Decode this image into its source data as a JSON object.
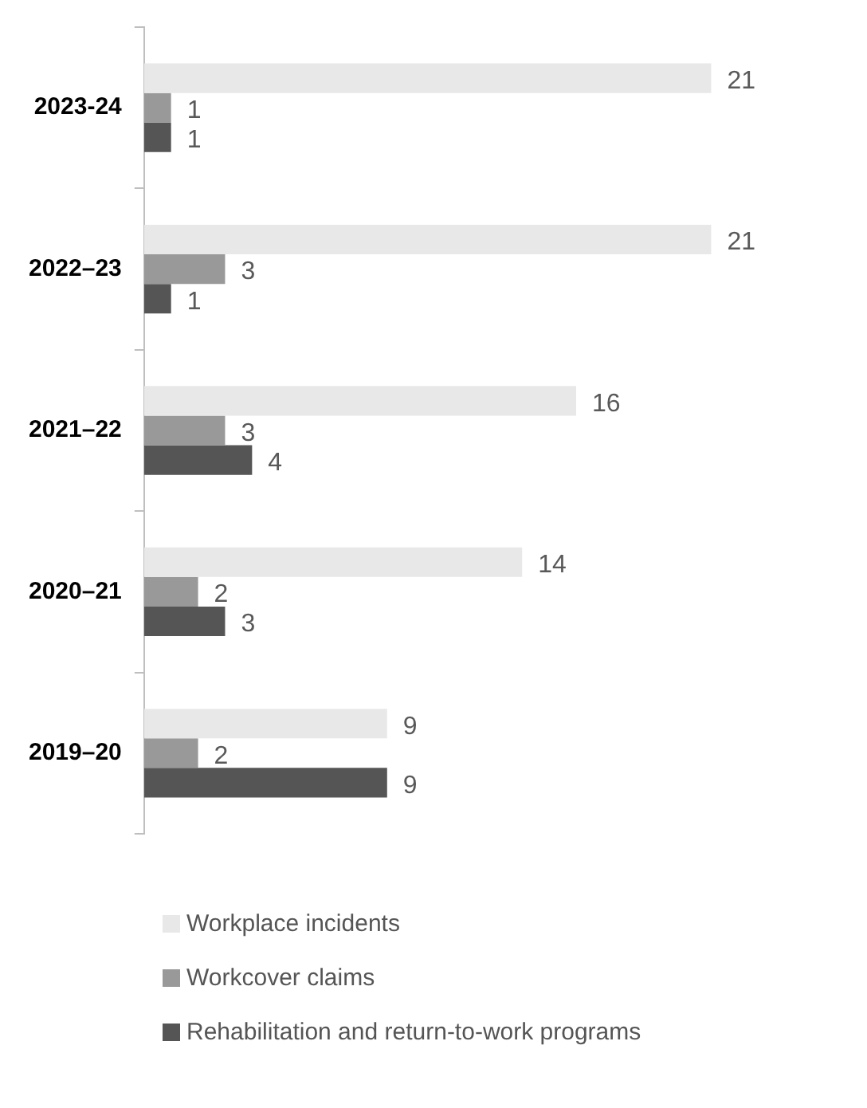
{
  "chart_data": {
    "type": "bar",
    "orientation": "horizontal",
    "categories": [
      "2023-24",
      "2022–23",
      "2021–22",
      "2020–21",
      "2019–20"
    ],
    "series": [
      {
        "name": "Workplace incidents",
        "color": "#e8e8e8",
        "values": [
          21,
          21,
          16,
          14,
          9
        ]
      },
      {
        "name": "Workcover claims",
        "color": "#999999",
        "values": [
          1,
          3,
          3,
          2,
          2
        ]
      },
      {
        "name": "Rehabilitation and return-to-work programs",
        "color": "#555555",
        "values": [
          1,
          1,
          4,
          3,
          9
        ]
      }
    ],
    "data_labels": true,
    "legend": "bottom"
  }
}
